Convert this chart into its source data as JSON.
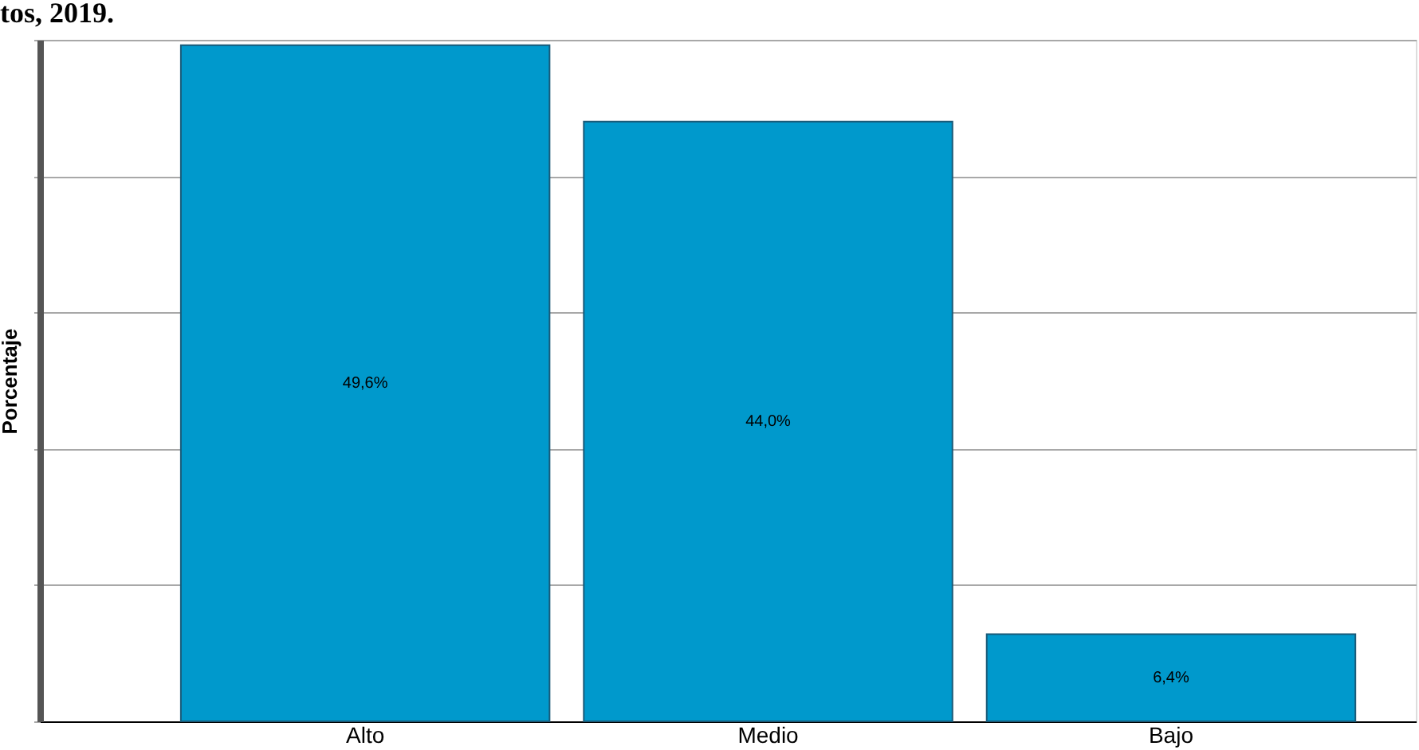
{
  "chart_data": {
    "type": "bar",
    "title": "tos, 2019.",
    "ylabel": "Porcentaje",
    "categories": [
      "Alto",
      "Medio",
      "Bajo"
    ],
    "values": [
      49.6,
      44.0,
      6.4
    ],
    "color": "#0099cc",
    "value_labels": [
      "49,6%",
      "44,0%",
      "6,4%"
    ],
    "ylim": [
      0,
      50
    ],
    "yticks": [
      {
        "value": 0,
        "label": null
      },
      {
        "value": 10,
        "label": null
      },
      {
        "value": 20,
        "label": null
      },
      {
        "value": 30,
        "label": null
      },
      {
        "value": 40,
        "label": null
      },
      {
        "value": 50,
        "label": null
      }
    ],
    "grid": "y"
  }
}
